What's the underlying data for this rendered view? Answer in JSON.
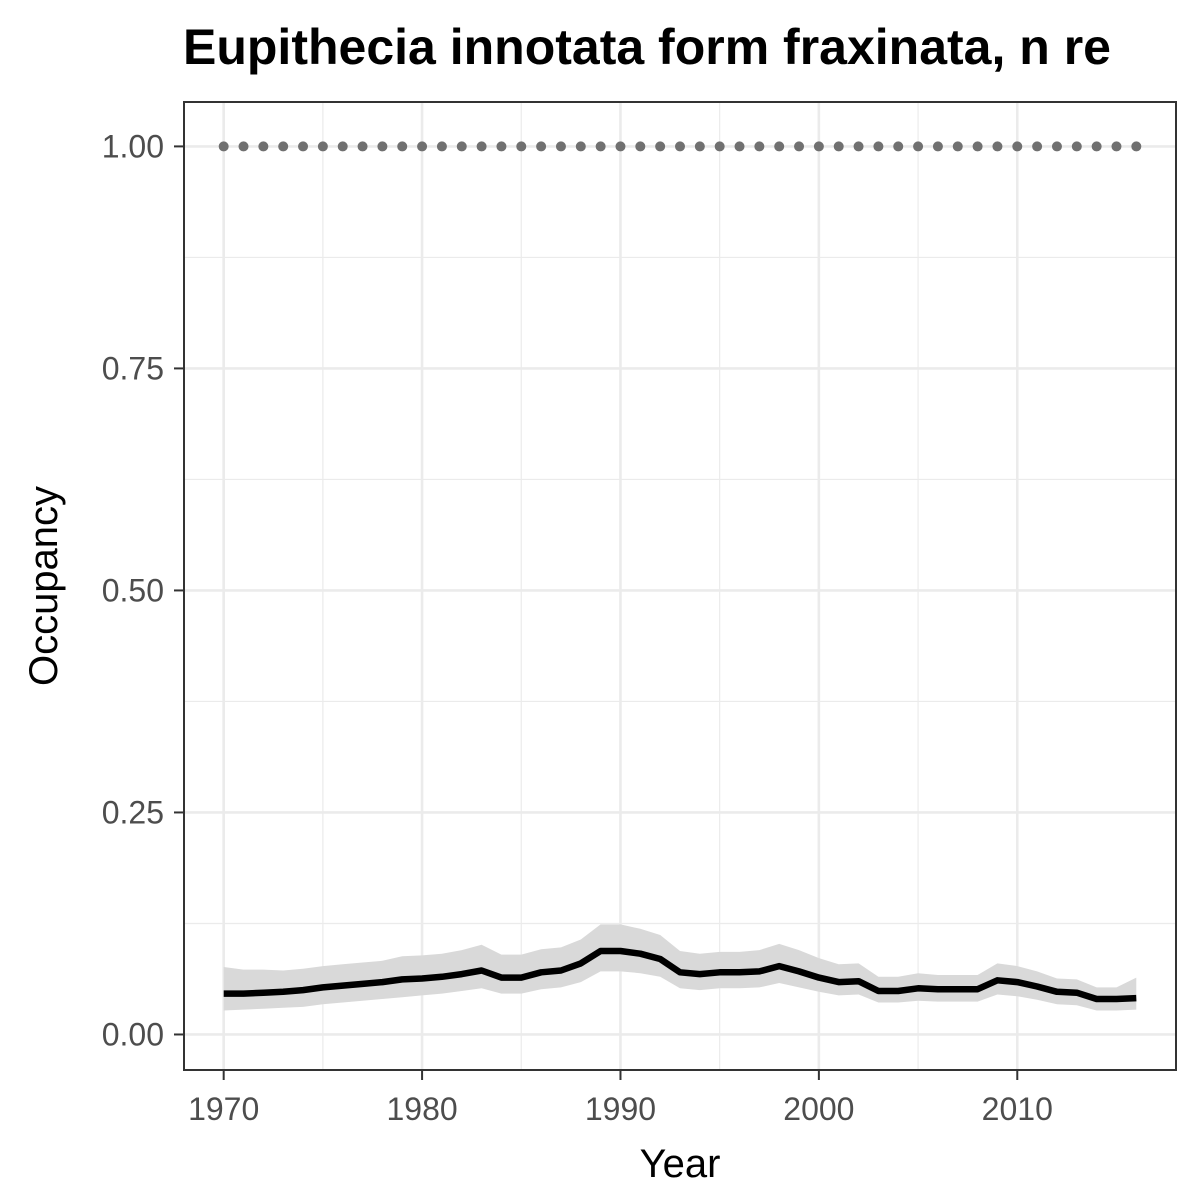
{
  "chart_data": {
    "type": "line",
    "title": "Eupithecia innotata form fraxinata, n re",
    "xlabel": "Year",
    "ylabel": "Occupancy",
    "xlim": [
      1968,
      2018
    ],
    "ylim": [
      -0.04,
      1.05
    ],
    "x_ticks": [
      1970,
      1980,
      1990,
      2000,
      2010
    ],
    "x_tick_labels": [
      "1970",
      "1980",
      "1990",
      "2000",
      "2010"
    ],
    "y_ticks": [
      0,
      0.25,
      0.5,
      0.75,
      1.0
    ],
    "y_tick_labels": [
      "0.00",
      "0.25",
      "0.50",
      "0.75",
      "1.00"
    ],
    "grid": true,
    "legend": "none",
    "colors": {
      "line": "#000000",
      "ribbon": "#d9d9d9",
      "dots": "#707070",
      "grid": "#ebebeb",
      "panel_border": "#333333"
    },
    "x": [
      1970,
      1971,
      1972,
      1973,
      1974,
      1975,
      1976,
      1977,
      1978,
      1979,
      1980,
      1981,
      1982,
      1983,
      1984,
      1985,
      1986,
      1987,
      1988,
      1989,
      1990,
      1991,
      1992,
      1993,
      1994,
      1995,
      1996,
      1997,
      1998,
      1999,
      2000,
      2001,
      2002,
      2003,
      2004,
      2005,
      2006,
      2007,
      2008,
      2009,
      2010,
      2011,
      2012,
      2013,
      2014,
      2015,
      2016
    ],
    "series": [
      {
        "values": [
          0.046,
          0.046,
          0.047,
          0.048,
          0.05,
          0.053,
          0.055,
          0.057,
          0.059,
          0.062,
          0.063,
          0.065,
          0.068,
          0.072,
          0.064,
          0.064,
          0.07,
          0.072,
          0.08,
          0.094,
          0.094,
          0.091,
          0.085,
          0.07,
          0.068,
          0.07,
          0.07,
          0.071,
          0.077,
          0.071,
          0.064,
          0.059,
          0.06,
          0.049,
          0.049,
          0.052,
          0.051,
          0.051,
          0.051,
          0.061,
          0.059,
          0.054,
          0.048,
          0.047,
          0.04,
          0.04,
          0.041
        ],
        "lower": [
          0.027,
          0.028,
          0.029,
          0.03,
          0.031,
          0.034,
          0.036,
          0.038,
          0.04,
          0.042,
          0.044,
          0.046,
          0.049,
          0.052,
          0.046,
          0.046,
          0.051,
          0.053,
          0.059,
          0.071,
          0.071,
          0.069,
          0.065,
          0.052,
          0.05,
          0.052,
          0.052,
          0.053,
          0.058,
          0.053,
          0.048,
          0.044,
          0.045,
          0.036,
          0.036,
          0.038,
          0.037,
          0.037,
          0.037,
          0.045,
          0.043,
          0.039,
          0.034,
          0.033,
          0.027,
          0.027,
          0.028
        ],
        "upper": [
          0.076,
          0.073,
          0.073,
          0.072,
          0.074,
          0.077,
          0.079,
          0.081,
          0.083,
          0.088,
          0.089,
          0.091,
          0.095,
          0.101,
          0.09,
          0.09,
          0.096,
          0.098,
          0.107,
          0.124,
          0.124,
          0.119,
          0.112,
          0.094,
          0.091,
          0.093,
          0.093,
          0.095,
          0.102,
          0.095,
          0.086,
          0.079,
          0.08,
          0.065,
          0.065,
          0.069,
          0.067,
          0.067,
          0.067,
          0.08,
          0.077,
          0.071,
          0.063,
          0.062,
          0.053,
          0.053,
          0.064
        ]
      }
    ],
    "reference_dots": {
      "x_start": 1970,
      "x_end": 2016,
      "count": 47,
      "value": 1.0
    }
  }
}
